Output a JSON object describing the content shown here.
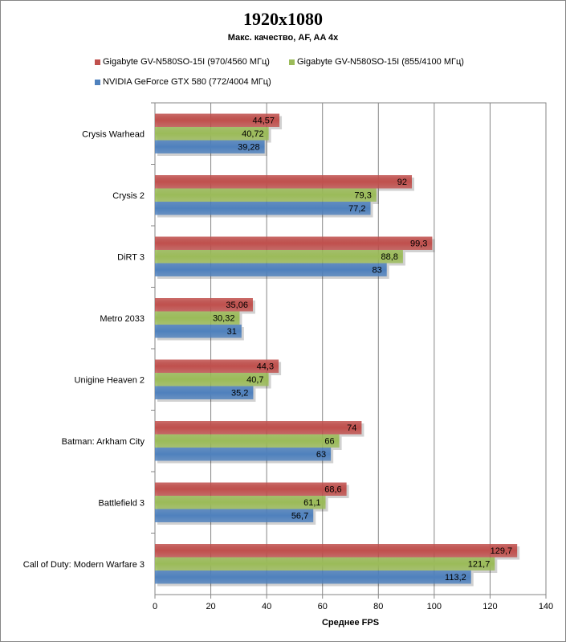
{
  "chart_data": {
    "type": "bar",
    "orientation": "horizontal",
    "title": "1920x1080",
    "subtitle": "Макс.  качество,  AF, AA 4x",
    "xlabel": "Среднее FPS",
    "ylabel": "",
    "xlim": [
      0,
      140
    ],
    "xticks": [
      0,
      20,
      40,
      60,
      80,
      100,
      120,
      140
    ],
    "grid": true,
    "legend_placement": "top",
    "categories": [
      "Crysis Warhead",
      "Crysis 2",
      "DiRT 3",
      "Metro 2033",
      "Unigine Heaven 2",
      "Batman: Arkham City",
      "Battlefield 3",
      "Call of Duty: Modern Warfare 3"
    ],
    "series": [
      {
        "name": "Gigabyte GV-N580SO-15I (970/4560 МГц)",
        "color": "#c0504d",
        "values": [
          44.57,
          92,
          99.3,
          35.06,
          44.3,
          74,
          68.6,
          129.7
        ],
        "labels": [
          "44,57",
          "92",
          "99,3",
          "35,06",
          "44,3",
          "74",
          "68,6",
          "129,7"
        ]
      },
      {
        "name": "Gigabyte GV-N580SO-15I (855/4100 МГц)",
        "color": "#9bbb59",
        "values": [
          40.72,
          79.3,
          88.8,
          30.32,
          40.7,
          66,
          61.1,
          121.7
        ],
        "labels": [
          "40,72",
          "79,3",
          "88,8",
          "30,32",
          "40,7",
          "66",
          "61,1",
          "121,7"
        ]
      },
      {
        "name": "NVIDIA GeForce GTX 580 (772/4004 МГц)",
        "color": "#4f81bd",
        "values": [
          39.28,
          77.2,
          83,
          31,
          35.2,
          63,
          56.7,
          113.2
        ],
        "labels": [
          "39,28",
          "77,2",
          "83",
          "31",
          "35,2",
          "63",
          "56,7",
          "113,2"
        ]
      }
    ]
  }
}
